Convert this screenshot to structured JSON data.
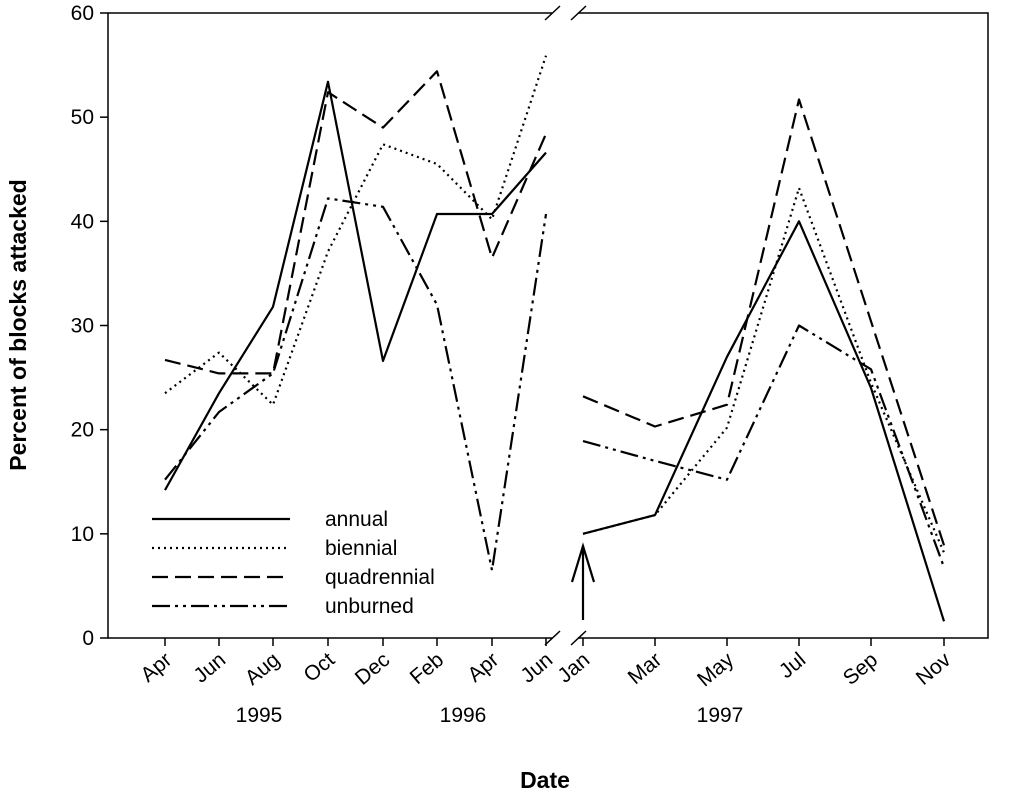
{
  "chart_data": {
    "type": "line",
    "xlabel": "Date",
    "ylabel": "Percent of blocks attacked",
    "ylim": [
      0,
      60
    ],
    "yticks": [
      0,
      10,
      20,
      30,
      40,
      50,
      60
    ],
    "legend_position": "bottom-left",
    "grid": false,
    "axis_break": "between Jun 1996 and Jan 1997",
    "arrow_annotation_at": "Jan",
    "year_labels": [
      "1995",
      "1996",
      "1997"
    ],
    "panels": [
      {
        "categories": [
          "Apr",
          "Jun",
          "Aug",
          "Oct",
          "Dec",
          "Feb",
          "Apr",
          "Jun"
        ],
        "series": [
          {
            "name": "annual",
            "style": "solid",
            "values": [
              14.2,
              23.5,
              31.8,
              53.4,
              26.6,
              40.7,
              40.7,
              46.6
            ]
          },
          {
            "name": "biennial",
            "style": "dotted",
            "values": [
              23.5,
              27.4,
              22.4,
              37.1,
              47.4,
              45.5,
              40.2,
              55.9
            ]
          },
          {
            "name": "quadrennial",
            "style": "dashed",
            "values": [
              26.7,
              25.4,
              25.4,
              52.4,
              49.0,
              54.4,
              36.5,
              48.4
            ]
          },
          {
            "name": "unburned",
            "style": "dash-dot",
            "values": [
              15.2,
              21.7,
              25.4,
              42.2,
              41.4,
              32.0,
              6.5,
              40.7
            ]
          }
        ]
      },
      {
        "categories": [
          "Jan",
          "Mar",
          "May",
          "Jul",
          "Sep",
          "Nov"
        ],
        "series": [
          {
            "name": "annual",
            "style": "solid",
            "values": [
              10.0,
              11.8,
              27.0,
              40.0,
              24.0,
              1.6
            ]
          },
          {
            "name": "biennial",
            "style": "dotted",
            "values": [
              10.0,
              11.8,
              20.2,
              43.2,
              24.5,
              8.2
            ]
          },
          {
            "name": "quadrennial",
            "style": "dashed",
            "values": [
              23.2,
              20.3,
              22.4,
              51.7,
              30.4,
              8.9
            ]
          },
          {
            "name": "unburned",
            "style": "dash-dot",
            "values": [
              18.9,
              17.0,
              15.2,
              30.0,
              25.8,
              6.8
            ]
          }
        ]
      }
    ]
  }
}
